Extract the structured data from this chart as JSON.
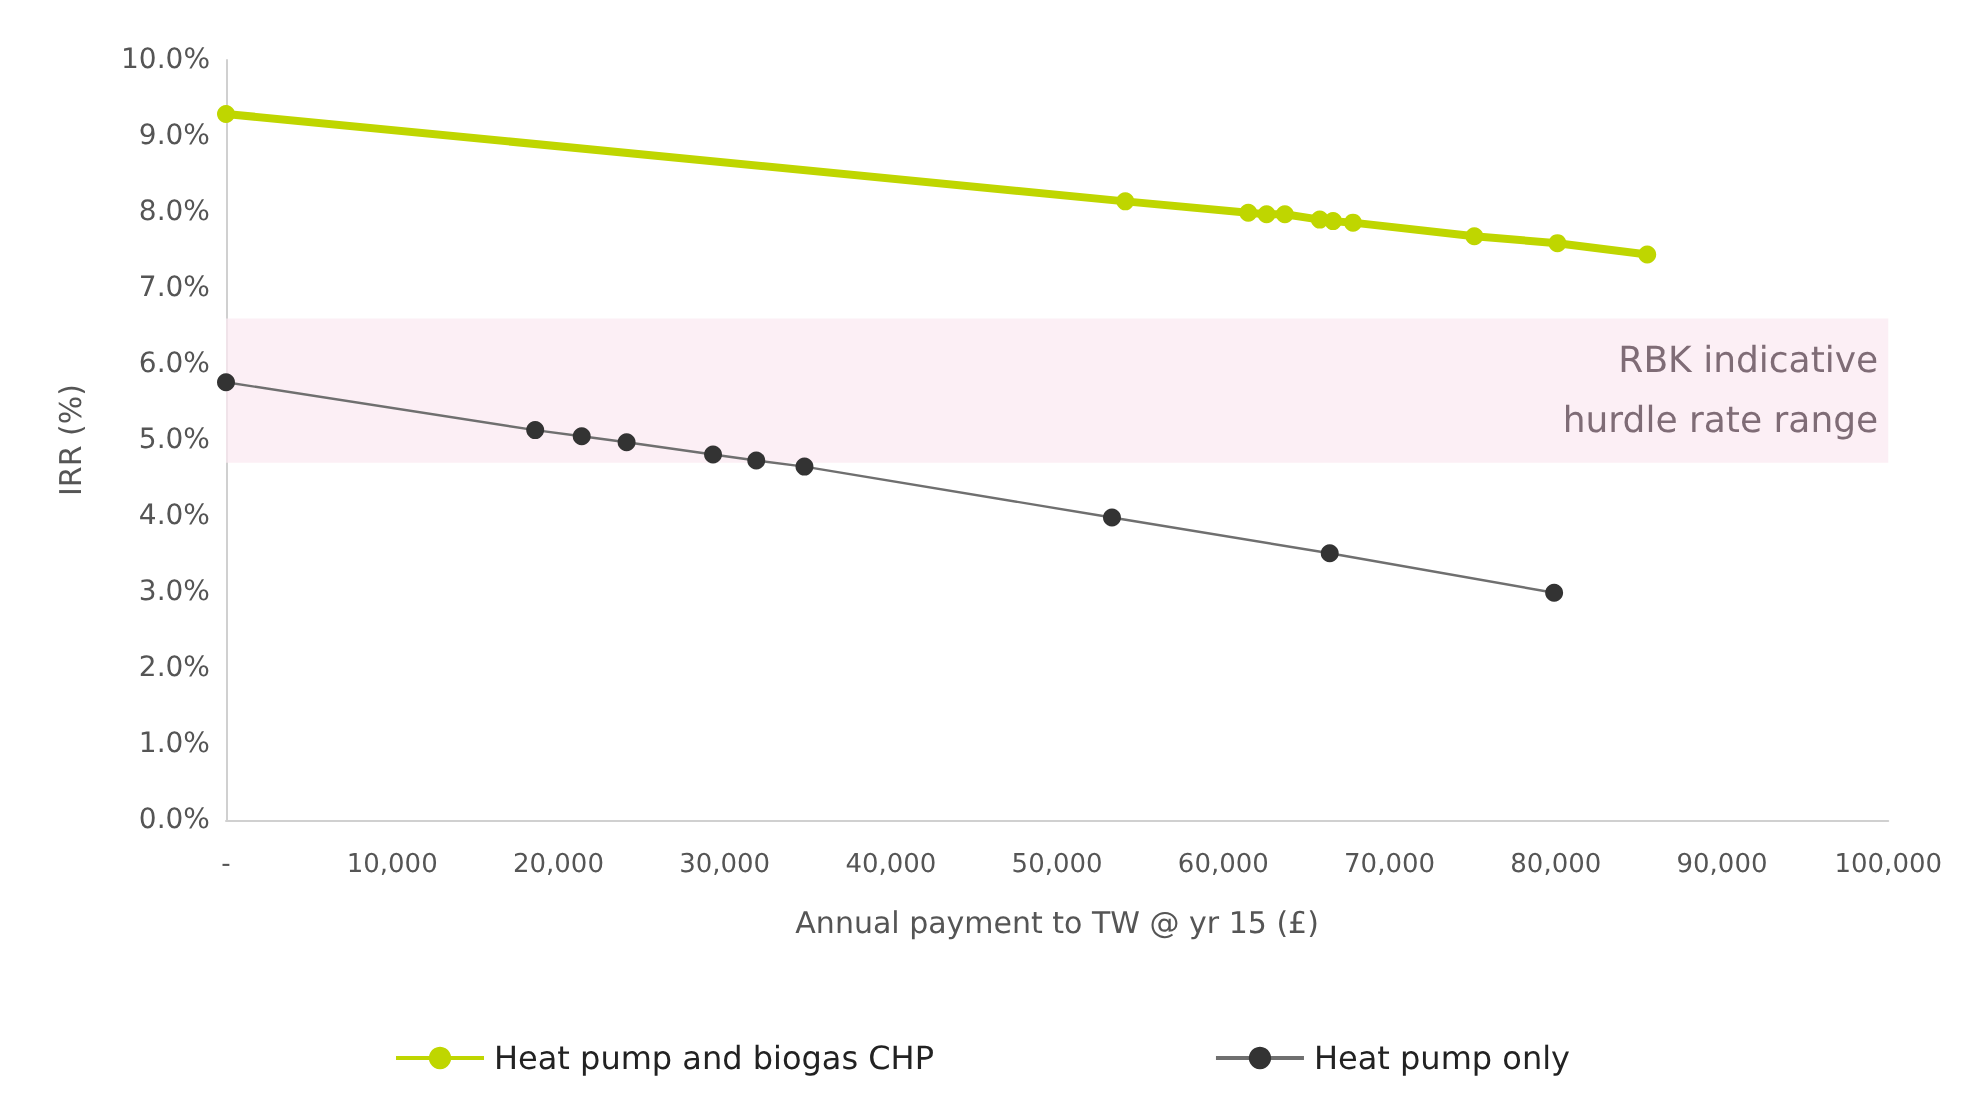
{
  "chart_data": {
    "type": "line",
    "xlabel": "Annual payment to TW @ yr 15 (£)",
    "ylabel": "IRR (%)",
    "xlim": [
      0,
      100000
    ],
    "xticks": [
      {
        "value": 0,
        "label": "-"
      },
      {
        "value": 10000,
        "label": "10,000"
      },
      {
        "value": 20000,
        "label": "20,000"
      },
      {
        "value": 30000,
        "label": "30,000"
      },
      {
        "value": 40000,
        "label": "40,000"
      },
      {
        "value": 50000,
        "label": "50,000"
      },
      {
        "value": 60000,
        "label": "60,000"
      },
      {
        "value": 70000,
        "label": "70,000"
      },
      {
        "value": 80000,
        "label": "80,000"
      },
      {
        "value": 90000,
        "label": "90,000"
      },
      {
        "value": 100000,
        "label": "100,000"
      }
    ],
    "ylim": [
      0,
      10
    ],
    "yticks": [
      {
        "value": 0,
        "label": "0.0%"
      },
      {
        "value": 1,
        "label": "1.0%"
      },
      {
        "value": 2,
        "label": "2.0%"
      },
      {
        "value": 3,
        "label": "3.0%"
      },
      {
        "value": 4,
        "label": "4.0%"
      },
      {
        "value": 5,
        "label": "5.0%"
      },
      {
        "value": 6,
        "label": "6.0%"
      },
      {
        "value": 7,
        "label": "7.0%"
      },
      {
        "value": 8,
        "label": "8.0%"
      },
      {
        "value": 9,
        "label": "9.0%"
      },
      {
        "value": 10,
        "label": "10.0%"
      }
    ],
    "series": [
      {
        "name": "Heat pump and biogas CHP",
        "color": "#bfd600",
        "x": [
          0,
          54100,
          61500,
          62600,
          63700,
          65800,
          66600,
          67800,
          75100,
          80100,
          85500
        ],
        "values": [
          9.29,
          8.14,
          7.99,
          7.97,
          7.97,
          7.9,
          7.88,
          7.86,
          7.68,
          7.59,
          7.44
        ]
      },
      {
        "name": "Heat pump only",
        "color": "#333333",
        "x": [
          0,
          18600,
          21400,
          24100,
          29300,
          31900,
          34800,
          53300,
          66400,
          79900
        ],
        "values": [
          5.76,
          5.13,
          5.05,
          4.97,
          4.81,
          4.73,
          4.65,
          3.98,
          3.51,
          2.99
        ]
      }
    ],
    "bands": [
      {
        "axis": "y",
        "from": 4.7,
        "to": 6.6,
        "label": "RBK indicative\nhurdle rate range",
        "color": "#fbe9f1"
      }
    ],
    "marker": "circle",
    "grid": false,
    "legend": "bottom"
  }
}
